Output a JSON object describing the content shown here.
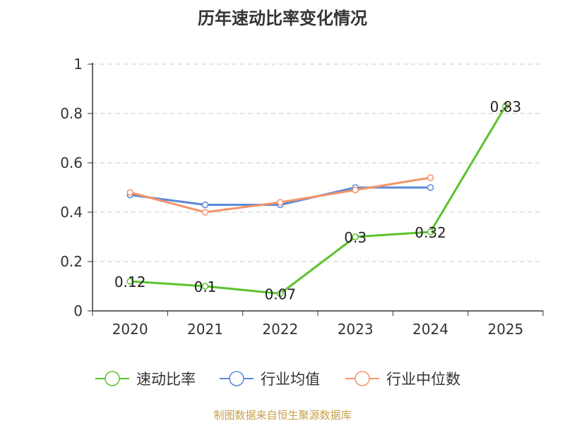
{
  "chart_data": {
    "type": "line",
    "title": "历年速动比率变化情况",
    "categories": [
      "2020",
      "2021",
      "2022",
      "2023",
      "2024",
      "2025"
    ],
    "ylim": [
      0,
      1
    ],
    "yticks": [
      0,
      0.2,
      0.4,
      0.6,
      0.8,
      1
    ],
    "ytick_labels": [
      "0",
      "0.2",
      "0.4",
      "0.6",
      "0.8",
      "1"
    ],
    "grid": true,
    "legend_position": "bottom",
    "series": [
      {
        "name": "速动比率",
        "color": "#5cc22b",
        "values": [
          0.12,
          0.1,
          0.07,
          0.3,
          0.32,
          0.83
        ],
        "labels": [
          "0.12",
          "0.1",
          "0.07",
          "0.3",
          "0.32",
          "0.83"
        ]
      },
      {
        "name": "行业均值",
        "color": "#5b8ad8",
        "values": [
          0.47,
          0.43,
          0.43,
          0.5,
          0.5,
          null
        ]
      },
      {
        "name": "行业中位数",
        "color": "#f49468",
        "values": [
          0.48,
          0.4,
          0.44,
          0.49,
          0.54,
          null
        ]
      }
    ]
  },
  "source_note": "制图数据来自恒生聚源数据库"
}
